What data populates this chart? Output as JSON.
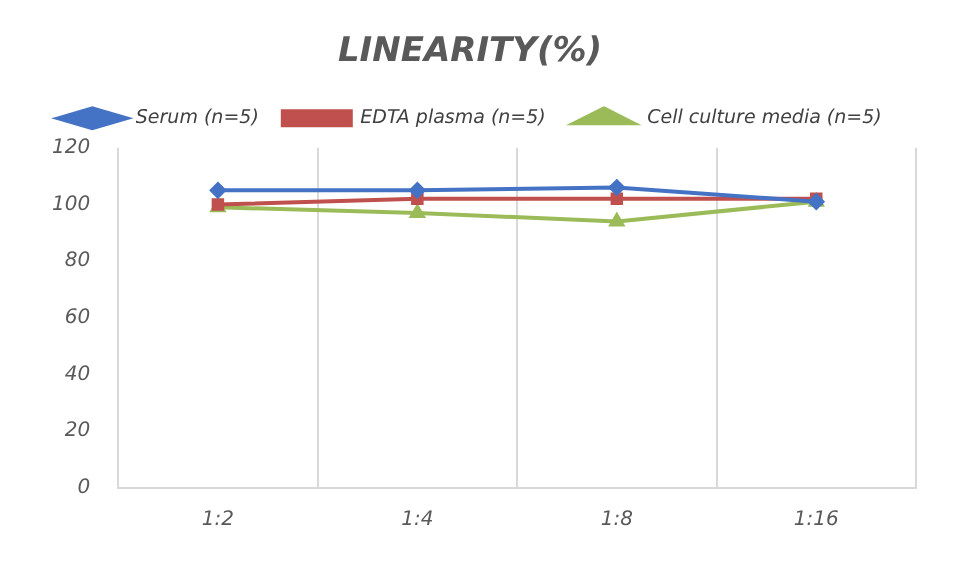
{
  "chart_data": {
    "type": "line",
    "title": "LINEARITY(%)",
    "categories": [
      "1:2",
      "1:4",
      "1:8",
      "1:16"
    ],
    "series": [
      {
        "name": "Serum (n=5)",
        "color": "#4472c4",
        "marker": "diamond",
        "values": [
          105,
          105,
          106,
          101
        ]
      },
      {
        "name": "EDTA plasma (n=5)",
        "color": "#c0504d",
        "marker": "square",
        "values": [
          100,
          102,
          102,
          102
        ]
      },
      {
        "name": "Cell culture media (n=5)",
        "color": "#9bbb59",
        "marker": "triangle",
        "values": [
          99,
          97,
          94,
          101
        ]
      }
    ],
    "ylim": [
      0,
      120
    ],
    "yticks": [
      0,
      20,
      40,
      60,
      80,
      100,
      120
    ],
    "grid": "x",
    "legend": "top"
  }
}
